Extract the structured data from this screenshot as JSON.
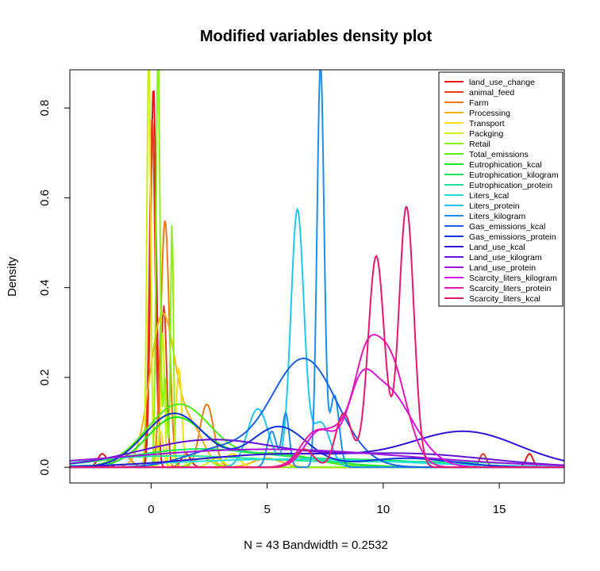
{
  "chart_data": {
    "type": "line",
    "title": "Modified variables density plot",
    "xlabel": "N = 43   Bandwidth = 0.2532",
    "ylabel": "Density",
    "xlim": [
      -3.5,
      17.8
    ],
    "ylim": [
      -0.035,
      0.885
    ],
    "x_ticks": [
      0,
      5,
      10,
      15
    ],
    "y_ticks": [
      0.0,
      0.2,
      0.4,
      0.6,
      0.8
    ],
    "x_tick_labels": [
      "0",
      "5",
      "10",
      "15"
    ],
    "y_tick_labels": [
      "0.0",
      "0.2",
      "0.4",
      "0.6",
      "0.8"
    ],
    "legend_position": "top-right",
    "series": [
      {
        "name": "land_use_change",
        "color": "#e8141a",
        "peaks": [
          [
            0.1,
            0.85,
            0.12
          ],
          [
            -2.1,
            0.03,
            0.2
          ],
          [
            16.3,
            0.03,
            0.15
          ],
          [
            1.5,
            0.03,
            0.2
          ]
        ]
      },
      {
        "name": "animal_feed",
        "color": "#ea3c16",
        "peaks": [
          [
            0.05,
            0.78,
            0.12
          ],
          [
            0.55,
            0.36,
            0.12
          ],
          [
            14.3,
            0.03,
            0.15
          ]
        ]
      },
      {
        "name": "Farm",
        "color": "#ef7914",
        "peaks": [
          [
            0.6,
            0.55,
            0.18
          ],
          [
            2.4,
            0.14,
            0.3
          ],
          [
            -1.2,
            0.03,
            0.3
          ]
        ]
      },
      {
        "name": "Processing",
        "color": "#f3b516",
        "peaks": [
          [
            0.5,
            0.34,
            0.55
          ],
          [
            1.8,
            0.08,
            0.5
          ],
          [
            5.0,
            0.02,
            0.6
          ]
        ]
      },
      {
        "name": "Transport",
        "color": "#f2e116",
        "peaks": [
          [
            1.2,
            0.22,
            0.12
          ],
          [
            0.4,
            0.08,
            0.12
          ],
          [
            3.5,
            0.03,
            0.3
          ]
        ]
      },
      {
        "name": "Packging",
        "color": "#cdef15",
        "peaks": [
          [
            -0.1,
            0.95,
            0.08
          ],
          [
            0.5,
            0.3,
            0.08
          ],
          [
            2.8,
            0.02,
            0.3
          ]
        ]
      },
      {
        "name": "Retail",
        "color": "#8ff013",
        "peaks": [
          [
            0.3,
            0.95,
            0.08
          ],
          [
            0.9,
            0.55,
            0.06
          ],
          [
            0.6,
            0.2,
            0.08
          ],
          [
            2.2,
            0.02,
            0.4
          ]
        ]
      },
      {
        "name": "Total_emissions",
        "color": "#4bee10",
        "peaks": [
          [
            1.2,
            0.14,
            1.4
          ],
          [
            5.5,
            0.03,
            1.5
          ]
        ]
      },
      {
        "name": "Eutrophication_kcal",
        "color": "#17e61c",
        "peaks": [
          [
            1.0,
            0.1,
            1.2
          ],
          [
            4.5,
            0.03,
            2.5
          ]
        ]
      },
      {
        "name": "Eutrophication_kilogram",
        "color": "#1ae55c",
        "peaks": [
          [
            2.0,
            0.04,
            3.0
          ],
          [
            9.5,
            0.015,
            3.0
          ]
        ]
      },
      {
        "name": "Eutrophication_protein",
        "color": "#1ee39d",
        "peaks": [
          [
            1.0,
            0.025,
            4.0
          ],
          [
            12.0,
            0.012,
            4.0
          ]
        ]
      },
      {
        "name": "Liters_kcal",
        "color": "#22e0d8",
        "peaks": [
          [
            6.0,
            0.018,
            5.0
          ]
        ]
      },
      {
        "name": "Liters_protein",
        "color": "#21c7ee",
        "peaks": [
          [
            6.3,
            0.57,
            0.28
          ],
          [
            4.6,
            0.13,
            0.45
          ],
          [
            7.3,
            0.1,
            0.4
          ]
        ]
      },
      {
        "name": "Liters_kilogram",
        "color": "#1c8fec",
        "peaks": [
          [
            7.3,
            0.9,
            0.15
          ],
          [
            5.8,
            0.12,
            0.15
          ],
          [
            7.9,
            0.16,
            0.2
          ],
          [
            5.2,
            0.08,
            0.2
          ]
        ]
      },
      {
        "name": "Gas_emissions_kcal",
        "color": "#1960e6",
        "peaks": [
          [
            6.6,
            0.24,
            1.4
          ],
          [
            3.0,
            0.04,
            1.5
          ]
        ]
      },
      {
        "name": "Gas_emissions_protein",
        "color": "#1431de",
        "peaks": [
          [
            1.0,
            0.12,
            1.3
          ],
          [
            5.5,
            0.09,
            1.2
          ],
          [
            11.0,
            0.02,
            2.0
          ]
        ]
      },
      {
        "name": "Land_use_kcal",
        "color": "#3314d6",
        "peaks": [
          [
            13.6,
            0.075,
            2.3
          ],
          [
            6.0,
            0.03,
            4.0
          ]
        ]
      },
      {
        "name": "Land_use_kilogram",
        "color": "#6312d8",
        "peaks": [
          [
            2.5,
            0.06,
            3.0
          ],
          [
            11.0,
            0.03,
            3.5
          ]
        ]
      },
      {
        "name": "Land_use_protein",
        "color": "#9b13dd",
        "peaks": [
          [
            5.0,
            0.04,
            6.0
          ]
        ]
      },
      {
        "name": "Scarcity_liters_kilogram",
        "color": "#d417e4",
        "peaks": [
          [
            10.0,
            0.18,
            1.2
          ],
          [
            7.2,
            0.07,
            0.6
          ],
          [
            9.0,
            0.08,
            0.5
          ]
        ]
      },
      {
        "name": "Scarcity_liters_protein",
        "color": "#e419b4",
        "peaks": [
          [
            10.2,
            0.25,
            0.75
          ],
          [
            9.2,
            0.15,
            0.5
          ],
          [
            7.0,
            0.07,
            0.6
          ],
          [
            8.2,
            0.07,
            0.6
          ]
        ]
      },
      {
        "name": "Scarcity_liters_kcal",
        "color": "#e41772",
        "peaks": [
          [
            11.0,
            0.58,
            0.32
          ],
          [
            9.7,
            0.47,
            0.35
          ],
          [
            8.3,
            0.12,
            0.35
          ],
          [
            6.6,
            0.04,
            0.4
          ]
        ]
      }
    ]
  }
}
